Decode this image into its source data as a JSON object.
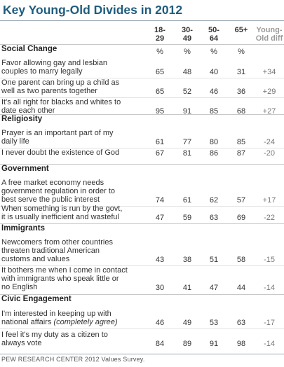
{
  "chart_data": {
    "type": "table",
    "title": "Key Young-Old Divides in 2012",
    "columns": [
      "18-\n29",
      "30-\n49",
      "50-\n64",
      "65+",
      "Young-\nOld diff"
    ],
    "unit_row": [
      "%",
      "%",
      "%",
      "%"
    ],
    "sections": [
      {
        "name": "Social Change",
        "rows": [
          {
            "label": "Favor allowing gay and lesbian\ncouples to marry legally",
            "values": [
              65,
              48,
              40,
              31
            ],
            "diff": "+34"
          },
          {
            "label": "One parent can bring up a child as\nwell as two parents together",
            "values": [
              65,
              52,
              46,
              36
            ],
            "diff": "+29"
          },
          {
            "label": "It's all right for blacks and whites to\ndate each other",
            "values": [
              95,
              91,
              85,
              68
            ],
            "diff": "+27"
          }
        ]
      },
      {
        "name": "Religiosity",
        "rows": [
          {
            "label": "Prayer is an important part of my\ndaily life",
            "values": [
              61,
              77,
              80,
              85
            ],
            "diff": "-24"
          },
          {
            "label": "I never doubt the existence of God",
            "values": [
              67,
              81,
              86,
              87
            ],
            "diff": "-20"
          }
        ]
      },
      {
        "name": "Government",
        "rows": [
          {
            "label": "A free market economy needs\ngovernment regulation in order to\nbest serve the public interest",
            "values": [
              74,
              61,
              62,
              57
            ],
            "diff": "+17"
          },
          {
            "label": "When something is run by the govt,\nit is usually inefficient and wasteful",
            "values": [
              47,
              59,
              63,
              69
            ],
            "diff": "-22"
          }
        ]
      },
      {
        "name": "Immigrants",
        "rows": [
          {
            "label": "Newcomers from other countries\nthreaten traditional American\ncustoms and values",
            "values": [
              43,
              38,
              51,
              58
            ],
            "diff": "-15"
          },
          {
            "label": "It bothers me when I come in contact\nwith immigrants who speak little or\nno English",
            "values": [
              30,
              41,
              47,
              44
            ],
            "diff": "-14"
          }
        ]
      },
      {
        "name": "Civic Engagement",
        "rows": [
          {
            "label": "I'm interested in keeping up with\nnational affairs",
            "label_note": "(completely agree)",
            "values": [
              46,
              49,
              53,
              63
            ],
            "diff": "-17"
          },
          {
            "label": "I feel it's my duty as a citizen to\nalways vote",
            "values": [
              84,
              89,
              91,
              98
            ],
            "diff": "-14"
          }
        ]
      }
    ],
    "source": "PEW RESEARCH CENTER 2012 Values Survey.",
    "colors": {
      "title": "#1f5d7e",
      "diff": "#9a9a9a"
    }
  }
}
